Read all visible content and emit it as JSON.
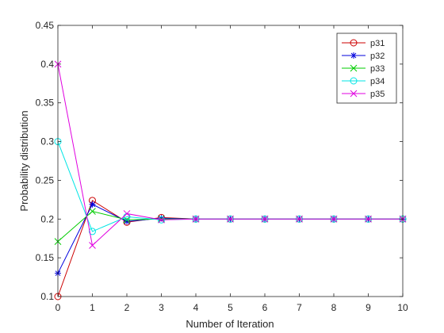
{
  "chart_data": {
    "type": "line",
    "title": "",
    "xlabel": "Number of Iteration",
    "ylabel": "Probability distribution",
    "xlim": [
      0,
      10
    ],
    "ylim": [
      0.1,
      0.45
    ],
    "xticks": [
      "0",
      "1",
      "2",
      "3",
      "4",
      "5",
      "6",
      "7",
      "8",
      "9",
      "10"
    ],
    "yticks": [
      "0.1",
      "0.15",
      "0.2",
      "0.25",
      "0.3",
      "0.35",
      "0.4",
      "0.45"
    ],
    "grid": false,
    "legend_position": "top-right",
    "x": [
      0,
      1,
      2,
      3,
      4,
      5,
      6,
      7,
      8,
      9,
      10
    ],
    "series": [
      {
        "name": "p31",
        "color": "#cc0000",
        "marker": "circle",
        "values": [
          0.1,
          0.224,
          0.196,
          0.202,
          0.2,
          0.2,
          0.2,
          0.2,
          0.2,
          0.2,
          0.2
        ]
      },
      {
        "name": "p32",
        "color": "#0000dd",
        "marker": "asterisk",
        "values": [
          0.13,
          0.219,
          0.197,
          0.201,
          0.2,
          0.2,
          0.2,
          0.2,
          0.2,
          0.2,
          0.2
        ]
      },
      {
        "name": "p33",
        "color": "#00cc00",
        "marker": "x",
        "values": [
          0.171,
          0.21,
          0.199,
          0.2,
          0.2,
          0.2,
          0.2,
          0.2,
          0.2,
          0.2,
          0.2
        ]
      },
      {
        "name": "p34",
        "color": "#00e5e5",
        "marker": "circle",
        "values": [
          0.3,
          0.184,
          0.203,
          0.199,
          0.2,
          0.2,
          0.2,
          0.2,
          0.2,
          0.2,
          0.2
        ]
      },
      {
        "name": "p35",
        "color": "#e000e0",
        "marker": "x",
        "values": [
          0.4,
          0.166,
          0.207,
          0.199,
          0.2,
          0.2,
          0.2,
          0.2,
          0.2,
          0.2,
          0.2
        ]
      }
    ]
  }
}
